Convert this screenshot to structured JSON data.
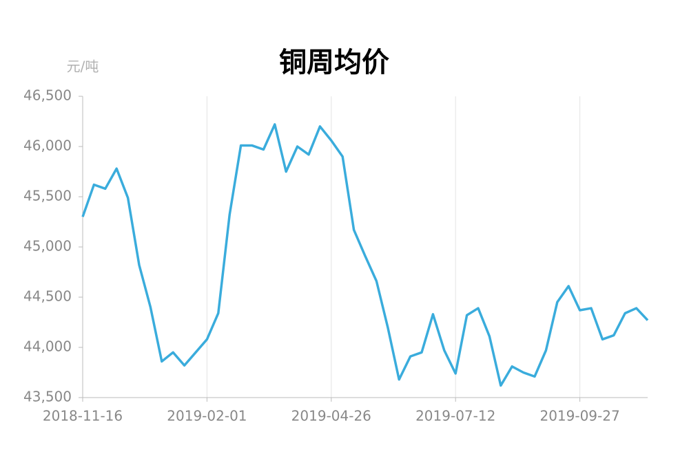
{
  "chart_data": {
    "type": "line",
    "title": "铜周均价",
    "y_unit_label": "元/吨",
    "categories": [
      "2018-11-16",
      null,
      null,
      null,
      null,
      null,
      null,
      null,
      null,
      null,
      null,
      "2019-02-01",
      null,
      null,
      null,
      null,
      null,
      null,
      null,
      null,
      null,
      null,
      "2019-04-26",
      null,
      null,
      null,
      null,
      null,
      null,
      null,
      null,
      null,
      null,
      "2019-07-12",
      null,
      null,
      null,
      null,
      null,
      null,
      null,
      null,
      null,
      null,
      "2019-09-27",
      null,
      null,
      null,
      null,
      null,
      null
    ],
    "series": [
      {
        "name": "铜周均价",
        "color": "#3aacdc",
        "values": [
          45300,
          45620,
          45580,
          45780,
          45490,
          44820,
          44400,
          43860,
          43950,
          43820,
          43950,
          44080,
          44340,
          45320,
          46010,
          46010,
          45970,
          46220,
          45750,
          46000,
          45920,
          46200,
          46060,
          45900,
          45170,
          44910,
          44660,
          44200,
          43680,
          43910,
          43950,
          44330,
          43970,
          43740,
          44320,
          44390,
          44110,
          43620,
          43810,
          43750,
          43710,
          43970,
          44450,
          44610,
          44370,
          44390,
          44080,
          44120,
          44340,
          44390,
          44270
        ]
      }
    ],
    "ylim": [
      43500,
      46500
    ],
    "yticks": [
      {
        "value": 43500,
        "label": "43,500"
      },
      {
        "value": 44000,
        "label": "44,000"
      },
      {
        "value": 44500,
        "label": "44,500"
      },
      {
        "value": 45000,
        "label": "45,000"
      },
      {
        "value": 45500,
        "label": "45,500"
      },
      {
        "value": 46000,
        "label": "46,000"
      },
      {
        "value": 46500,
        "label": "46,500"
      }
    ],
    "grid": "x"
  }
}
